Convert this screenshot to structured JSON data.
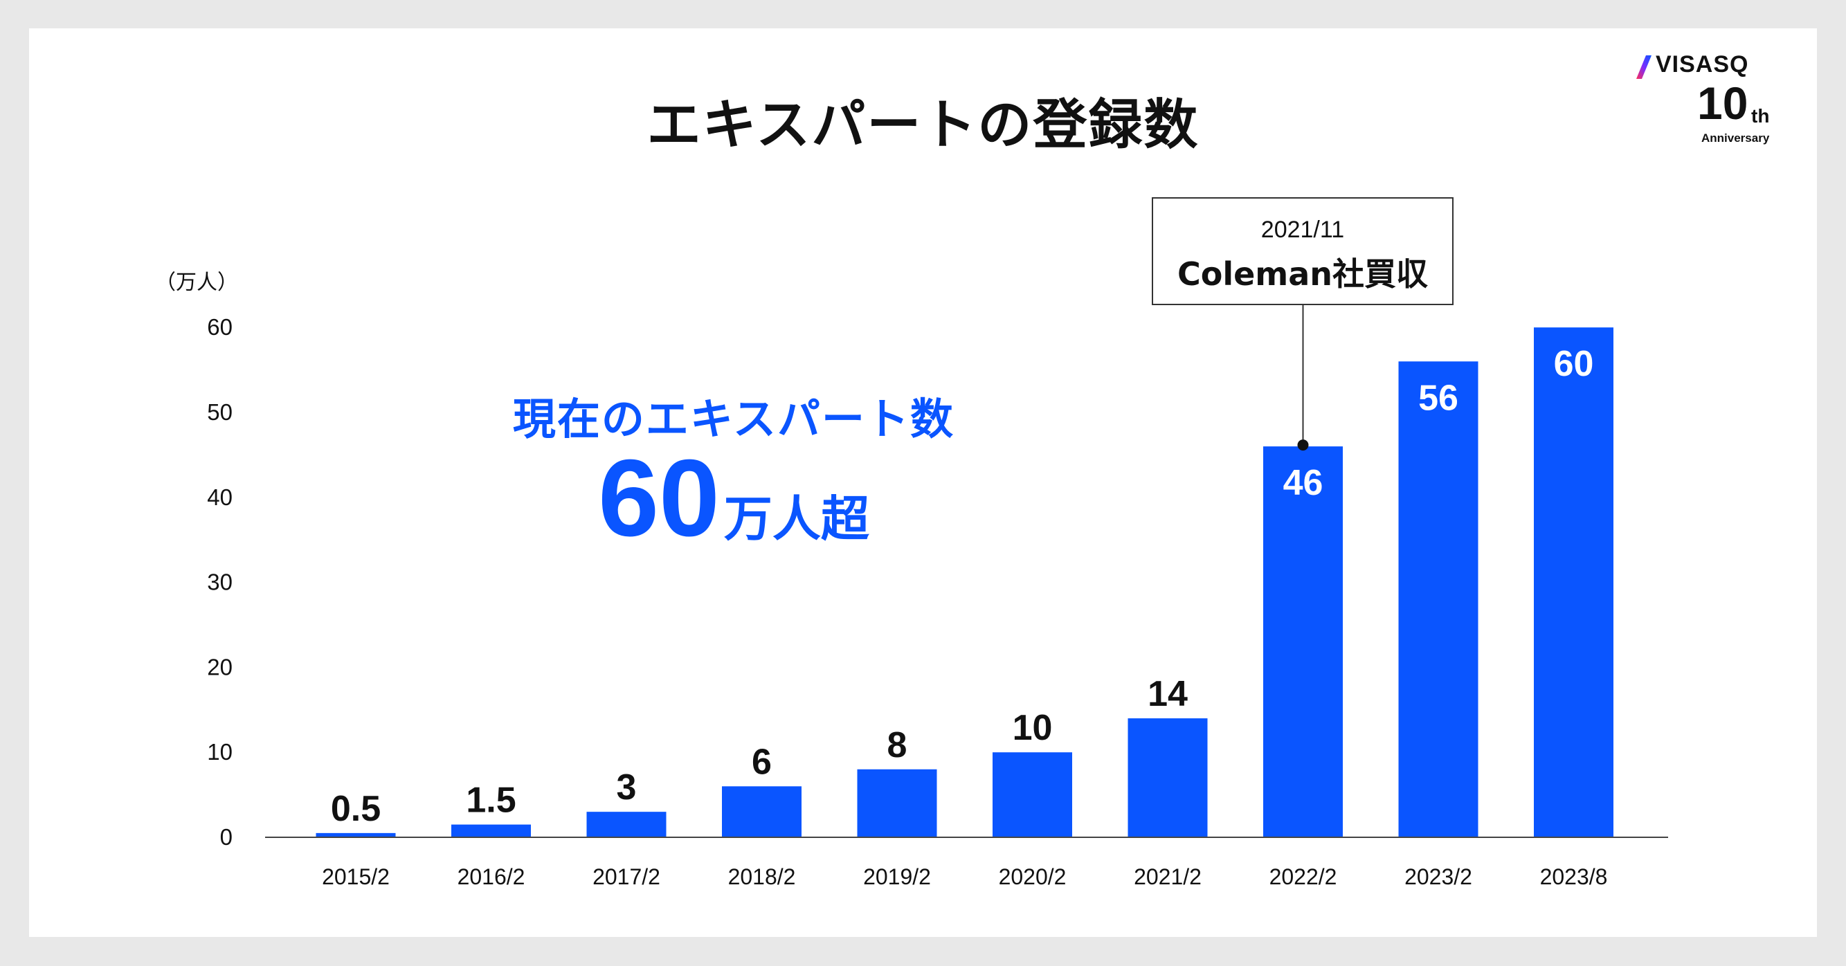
{
  "title": "エキスパートの登録数",
  "logo": {
    "brand": "VISASQ",
    "number": "10",
    "suffix": "th",
    "caption": "Anniversary"
  },
  "headline": {
    "line1": "現在のエキスパート数",
    "value": "60",
    "unit": "万人超"
  },
  "callout": {
    "date": "2021/11",
    "event": "Coleman社買収"
  },
  "chart_data": {
    "type": "bar",
    "ylabel": "（万人）",
    "ylim": [
      0,
      60
    ],
    "yticks": [
      0,
      10,
      20,
      30,
      40,
      50,
      60
    ],
    "categories": [
      "2015/2",
      "2016/2",
      "2017/2",
      "2018/2",
      "2019/2",
      "2020/2",
      "2021/2",
      "2022/2",
      "2023/2",
      "2023/8"
    ],
    "values": [
      0.5,
      1.5,
      3,
      6,
      8,
      10,
      14,
      46,
      56,
      60
    ],
    "labels": [
      "0.5",
      "1.5",
      "3",
      "6",
      "8",
      "10",
      "14",
      "46",
      "56",
      "60"
    ],
    "grid": false,
    "bar_color": "#0a55ff",
    "annotation_category": "2022/2"
  }
}
